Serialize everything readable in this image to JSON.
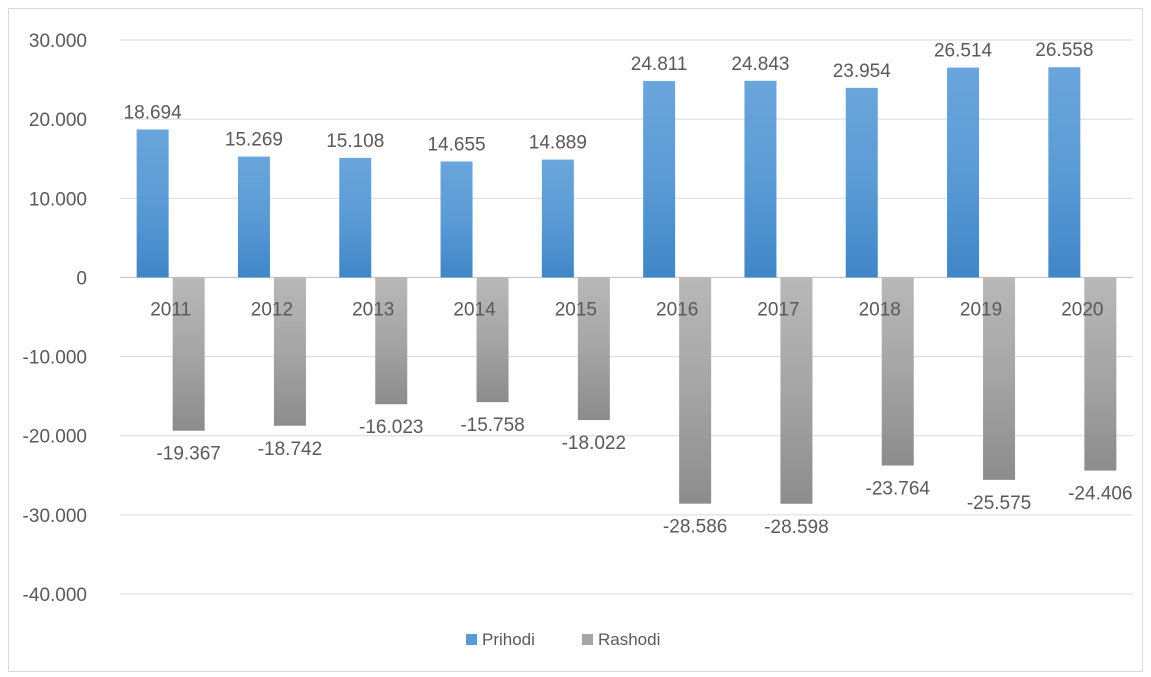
{
  "chart_data": {
    "type": "bar",
    "categories": [
      "2011",
      "2012",
      "2013",
      "2014",
      "2015",
      "2016",
      "2017",
      "2018",
      "2019",
      "2020"
    ],
    "series": [
      {
        "name": "Prihodi",
        "color": "#5b9bd5",
        "values": [
          18694,
          15269,
          15108,
          14655,
          14889,
          24811,
          24843,
          23954,
          26514,
          26558
        ],
        "labels": [
          "18.694",
          "15.269",
          "15.108",
          "14.655",
          "14.889",
          "24.811",
          "24.843",
          "23.954",
          "26.514",
          "26.558"
        ]
      },
      {
        "name": "Rashodi",
        "color": "#a5a5a5",
        "values": [
          -19367,
          -18742,
          -16023,
          -15758,
          -18022,
          -28586,
          -28598,
          -23764,
          -25575,
          -24406
        ],
        "labels": [
          "-19.367",
          "-18.742",
          "-16.023",
          "-15.758",
          "-18.022",
          "-28.586",
          "-28.598",
          "-23.764",
          "-25.575",
          "-24.406"
        ]
      }
    ],
    "ylim": [
      -40000,
      30000
    ],
    "yticks": [
      30000,
      20000,
      10000,
      0,
      -10000,
      -20000,
      -30000,
      -40000
    ],
    "ytick_labels": [
      "30.000",
      "20.000",
      "10.000",
      "0",
      "-10.000",
      "-20.000",
      "-30.000",
      "-40.000"
    ],
    "grid": true,
    "legend": "bottom-center",
    "title": "",
    "xlabel": "",
    "ylabel": ""
  }
}
